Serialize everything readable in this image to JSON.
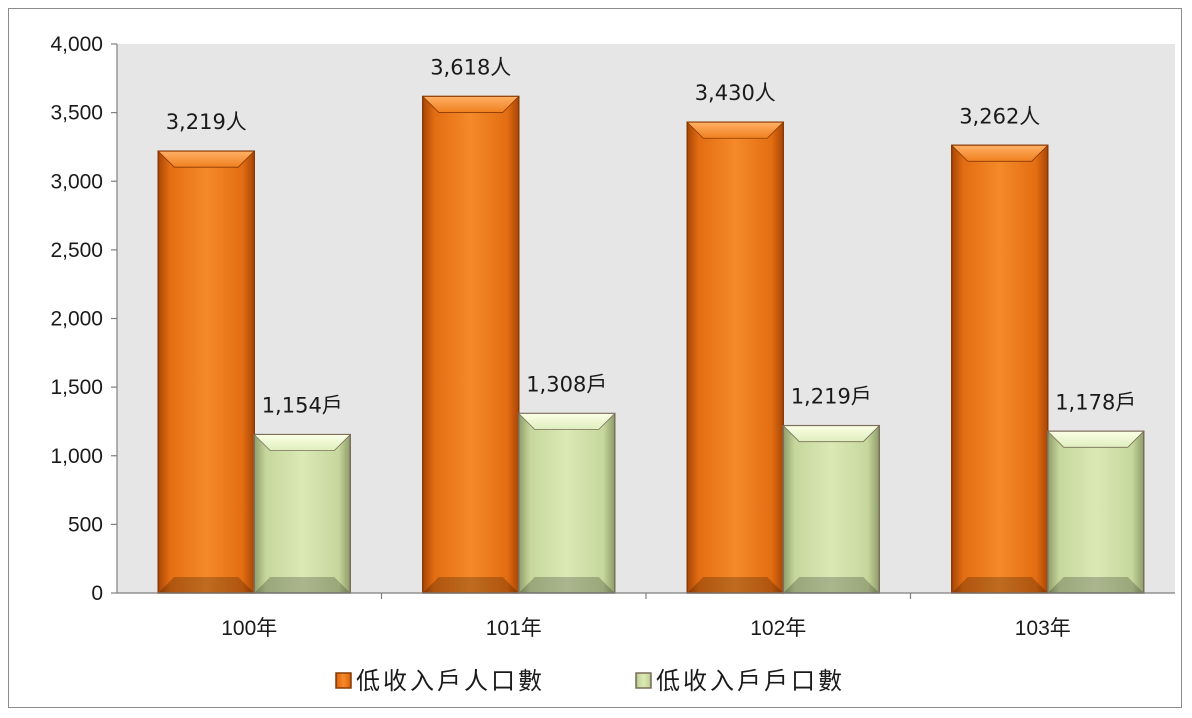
{
  "chart_data": {
    "type": "bar",
    "categories": [
      "100年",
      "101年",
      "102年",
      "103年"
    ],
    "series": [
      {
        "name": "低收入戶人口數",
        "values": [
          3219,
          3618,
          3430,
          3262
        ],
        "labels": [
          "3,219人",
          "3,618人",
          "3,430人",
          "3,262人"
        ],
        "color": "#f07a1a"
      },
      {
        "name": "低收入戶戶口數",
        "values": [
          1154,
          1308,
          1219,
          1178
        ],
        "labels": [
          "1,154戶",
          "1,308戶",
          "1,219戶",
          "1,178戶"
        ],
        "color": "#cfe0a6"
      }
    ],
    "ylim": [
      0,
      4000
    ],
    "yticks": [
      0,
      500,
      1000,
      1500,
      2000,
      2500,
      3000,
      3500,
      4000
    ],
    "ytick_labels": [
      "0",
      "500",
      "1,000",
      "1,500",
      "2,000",
      "2,500",
      "3,000",
      "3,500",
      "4,000"
    ],
    "title": "",
    "xlabel": "",
    "ylabel": "",
    "grid": false,
    "legend_position": "bottom",
    "plot_background": "#e6e6e6"
  }
}
